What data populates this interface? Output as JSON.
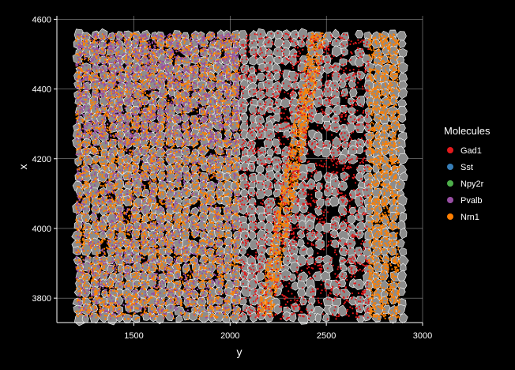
{
  "chart_data": {
    "type": "scatter",
    "title": "",
    "xlabel": "y",
    "ylabel": "x",
    "xlim": [
      1100,
      3000
    ],
    "ylim": [
      3730,
      4610
    ],
    "x_ticks": [
      1500,
      2000,
      2500,
      3000
    ],
    "y_ticks": [
      3800,
      4000,
      4200,
      4400,
      4600
    ],
    "grid": true,
    "background": "#000000",
    "cell_fill": "#8c8c8c",
    "cell_stroke": "#ffffff",
    "cell_region": {
      "x": [
        1200,
        2900
      ],
      "y": [
        3740,
        4560
      ]
    },
    "legend": {
      "title": "Molecules",
      "placement": "right",
      "entries": [
        {
          "name": "Gad1",
          "color": "#e41a1c"
        },
        {
          "name": "Sst",
          "color": "#377eb8"
        },
        {
          "name": "Npy2r",
          "color": "#4daf4a"
        },
        {
          "name": "Pvalb",
          "color": "#984ea3"
        },
        {
          "name": "Nrn1",
          "color": "#ff7f00"
        }
      ]
    },
    "density_regions": [
      {
        "molecule": "Nrn1",
        "kind": "box",
        "x": [
          1200,
          2050
        ],
        "y": [
          3740,
          4560
        ],
        "weight": 1.0
      },
      {
        "molecule": "Nrn1",
        "kind": "band",
        "x0": 2180,
        "y0": 3750,
        "x1": 2460,
        "y1": 4560,
        "width": 80,
        "weight": 1.0
      },
      {
        "molecule": "Nrn1",
        "kind": "box",
        "x": [
          2720,
          2880
        ],
        "y": [
          3740,
          4560
        ],
        "weight": 1.0
      },
      {
        "molecule": "Pvalb",
        "kind": "box",
        "x": [
          1200,
          2050
        ],
        "y": [
          4250,
          4560
        ],
        "weight": 0.6
      },
      {
        "molecule": "Pvalb",
        "kind": "box",
        "x": [
          1200,
          2050
        ],
        "y": [
          3740,
          4250
        ],
        "weight": 0.3
      },
      {
        "molecule": "Gad1",
        "kind": "box",
        "x": [
          2050,
          2720
        ],
        "y": [
          3740,
          4560
        ],
        "weight": 0.3
      }
    ]
  }
}
